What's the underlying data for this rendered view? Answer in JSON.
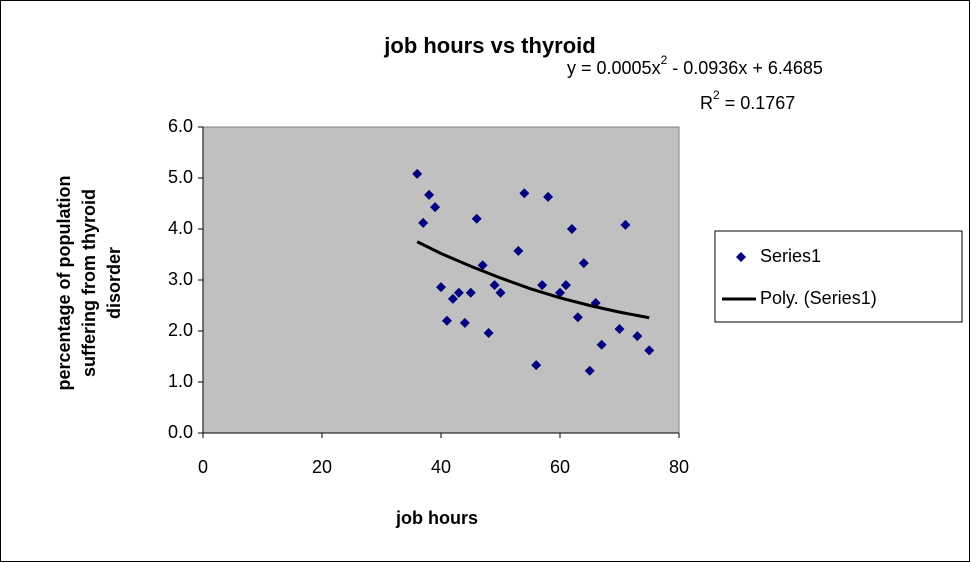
{
  "chart_data": {
    "type": "scatter",
    "title": "job hours vs thyroid",
    "xlabel": "job hours",
    "ylabel": [
      "percentage of population",
      "suffering from thyroid",
      "disorder"
    ],
    "equation": {
      "lead": "y = 0.0005x",
      "sup": "2",
      "tail": " - 0.0936x + 6.4685"
    },
    "r_squared": {
      "lead": "R",
      "sup": "2",
      "tail": " = 0.1767"
    },
    "xlim": [
      0,
      80
    ],
    "xticks": [
      0,
      20,
      40,
      60,
      80
    ],
    "ylim": [
      0,
      6
    ],
    "yticks": [
      {
        "value": 0,
        "label": "0.0"
      },
      {
        "value": 1,
        "label": "1.0"
      },
      {
        "value": 2,
        "label": "2.0"
      },
      {
        "value": 3,
        "label": "3.0"
      },
      {
        "value": 4,
        "label": "4.0"
      },
      {
        "value": 5,
        "label": "5.0"
      },
      {
        "value": 6,
        "label": "6.0"
      }
    ],
    "legend": "right",
    "series": [
      {
        "name": "Series1",
        "color": "#000080",
        "kind": "marker",
        "x": [
          36,
          37,
          38,
          39,
          40,
          41,
          42,
          43,
          44,
          45,
          46,
          47,
          48,
          49,
          50,
          53,
          54,
          56,
          57,
          58,
          60,
          61,
          62,
          63,
          64,
          65,
          66,
          67,
          70,
          71,
          73,
          75
        ],
        "values": [
          5.08,
          4.12,
          4.67,
          4.43,
          2.86,
          2.2,
          2.63,
          2.75,
          2.16,
          2.75,
          4.2,
          3.29,
          1.96,
          2.9,
          2.75,
          3.57,
          4.7,
          1.33,
          2.9,
          4.63,
          2.75,
          2.9,
          4.0,
          2.27,
          3.33,
          1.22,
          2.55,
          1.73,
          2.04,
          4.08,
          1.9,
          1.62
        ]
      },
      {
        "name": "Poly. (Series1)",
        "color": "#000000",
        "kind": "line",
        "x": [
          36,
          40,
          45,
          50,
          55,
          60,
          65,
          70,
          75
        ],
        "values": [
          3.75,
          3.52,
          3.27,
          3.04,
          2.83,
          2.65,
          2.5,
          2.37,
          2.26
        ]
      }
    ]
  }
}
